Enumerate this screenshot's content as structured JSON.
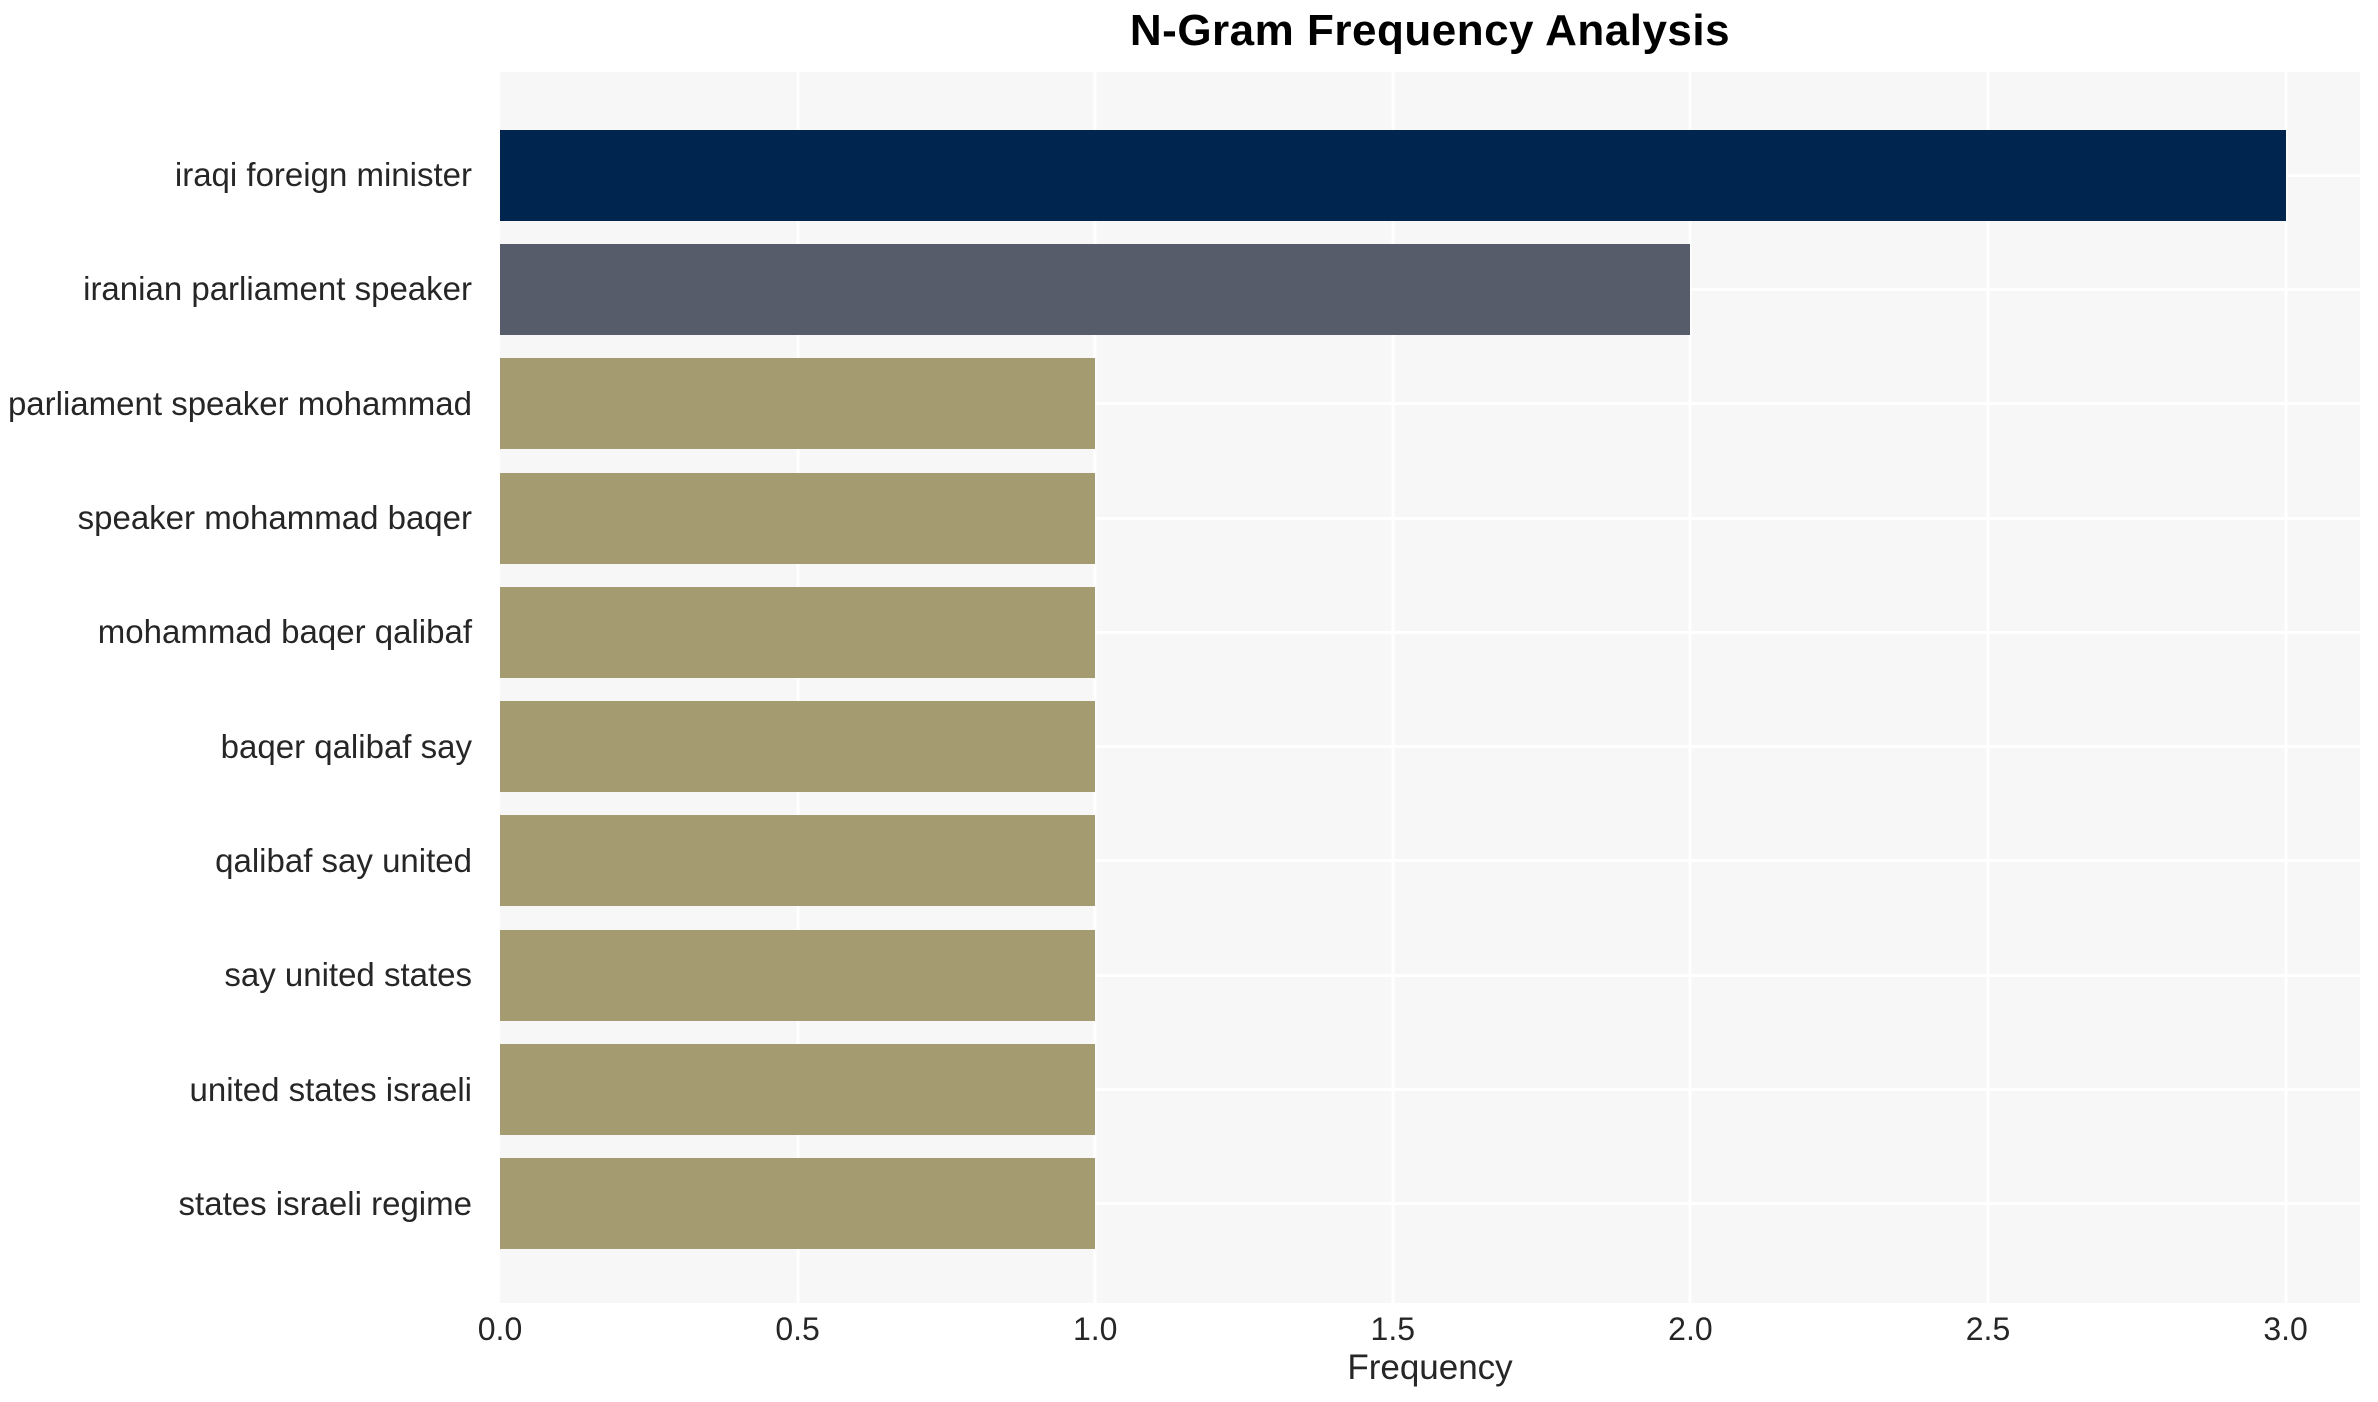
{
  "chart_data": {
    "type": "bar",
    "orientation": "horizontal",
    "title": "N-Gram Frequency Analysis",
    "xlabel": "Frequency",
    "ylabel": "",
    "categories": [
      "iraqi foreign minister",
      "iranian parliament speaker",
      "parliament speaker mohammad",
      "speaker mohammad baqer",
      "mohammad baqer qalibaf",
      "baqer qalibaf say",
      "qalibaf say united",
      "say united states",
      "united states israeli",
      "states israeli regime"
    ],
    "values": [
      3,
      2,
      1,
      1,
      1,
      1,
      1,
      1,
      1,
      1
    ],
    "bar_colors": [
      "#00254e",
      "#575c6b",
      "#a49b70",
      "#a49b70",
      "#a49b70",
      "#a49b70",
      "#a49b70",
      "#a49b70",
      "#a49b70",
      "#a49b70"
    ],
    "x_tick_labels": [
      "0.0",
      "0.5",
      "1.0",
      "1.5",
      "2.0",
      "2.5",
      "3.0"
    ],
    "x_tick_values": [
      0,
      0.5,
      1,
      1.5,
      2,
      2.5,
      3
    ],
    "xlim": [
      0,
      3.125
    ],
    "grid": true,
    "legend_visible": false,
    "plot_bg_color": "#f7f7f7",
    "outer_bg_color": "#ffffff",
    "grid_color": "#ffffff",
    "text_color": "#262626",
    "title_color": "#000000"
  }
}
